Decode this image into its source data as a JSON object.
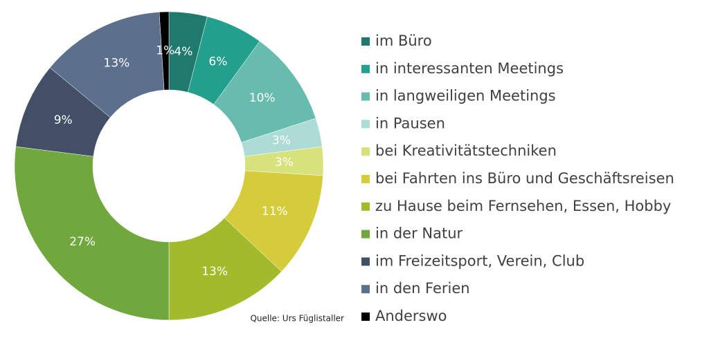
{
  "chart_data": {
    "type": "donut",
    "categories": [
      "im Büro",
      "in interessanten Meetings",
      "in langweiligen Meetings",
      "in Pausen",
      "bei Kreativitätstechniken",
      "bei Fahrten ins Büro und Geschäftsreisen",
      "zu Hause beim Fernsehen, Essen, Hobby",
      "in der Natur",
      "im Freizeitsport, Verein, Club",
      "in den Ferien",
      "Anderswo"
    ],
    "values": [
      4,
      6,
      10,
      3,
      3,
      11,
      13,
      27,
      9,
      13,
      1
    ],
    "value_labels": [
      "4%",
      "6%",
      "10%",
      "3%",
      "3%",
      "11%",
      "13%",
      "27%",
      "9%",
      "13%",
      "1%"
    ],
    "colors": [
      "#1f7a6d",
      "#23a08d",
      "#68bcae",
      "#acdcd5",
      "#d7e27b",
      "#d5cc3b",
      "#a3ba2b",
      "#70a83d",
      "#424f66",
      "#5c6f8c",
      "#000000"
    ],
    "legend": "right",
    "annotation": "Quelle: Urs Füglistaller"
  }
}
